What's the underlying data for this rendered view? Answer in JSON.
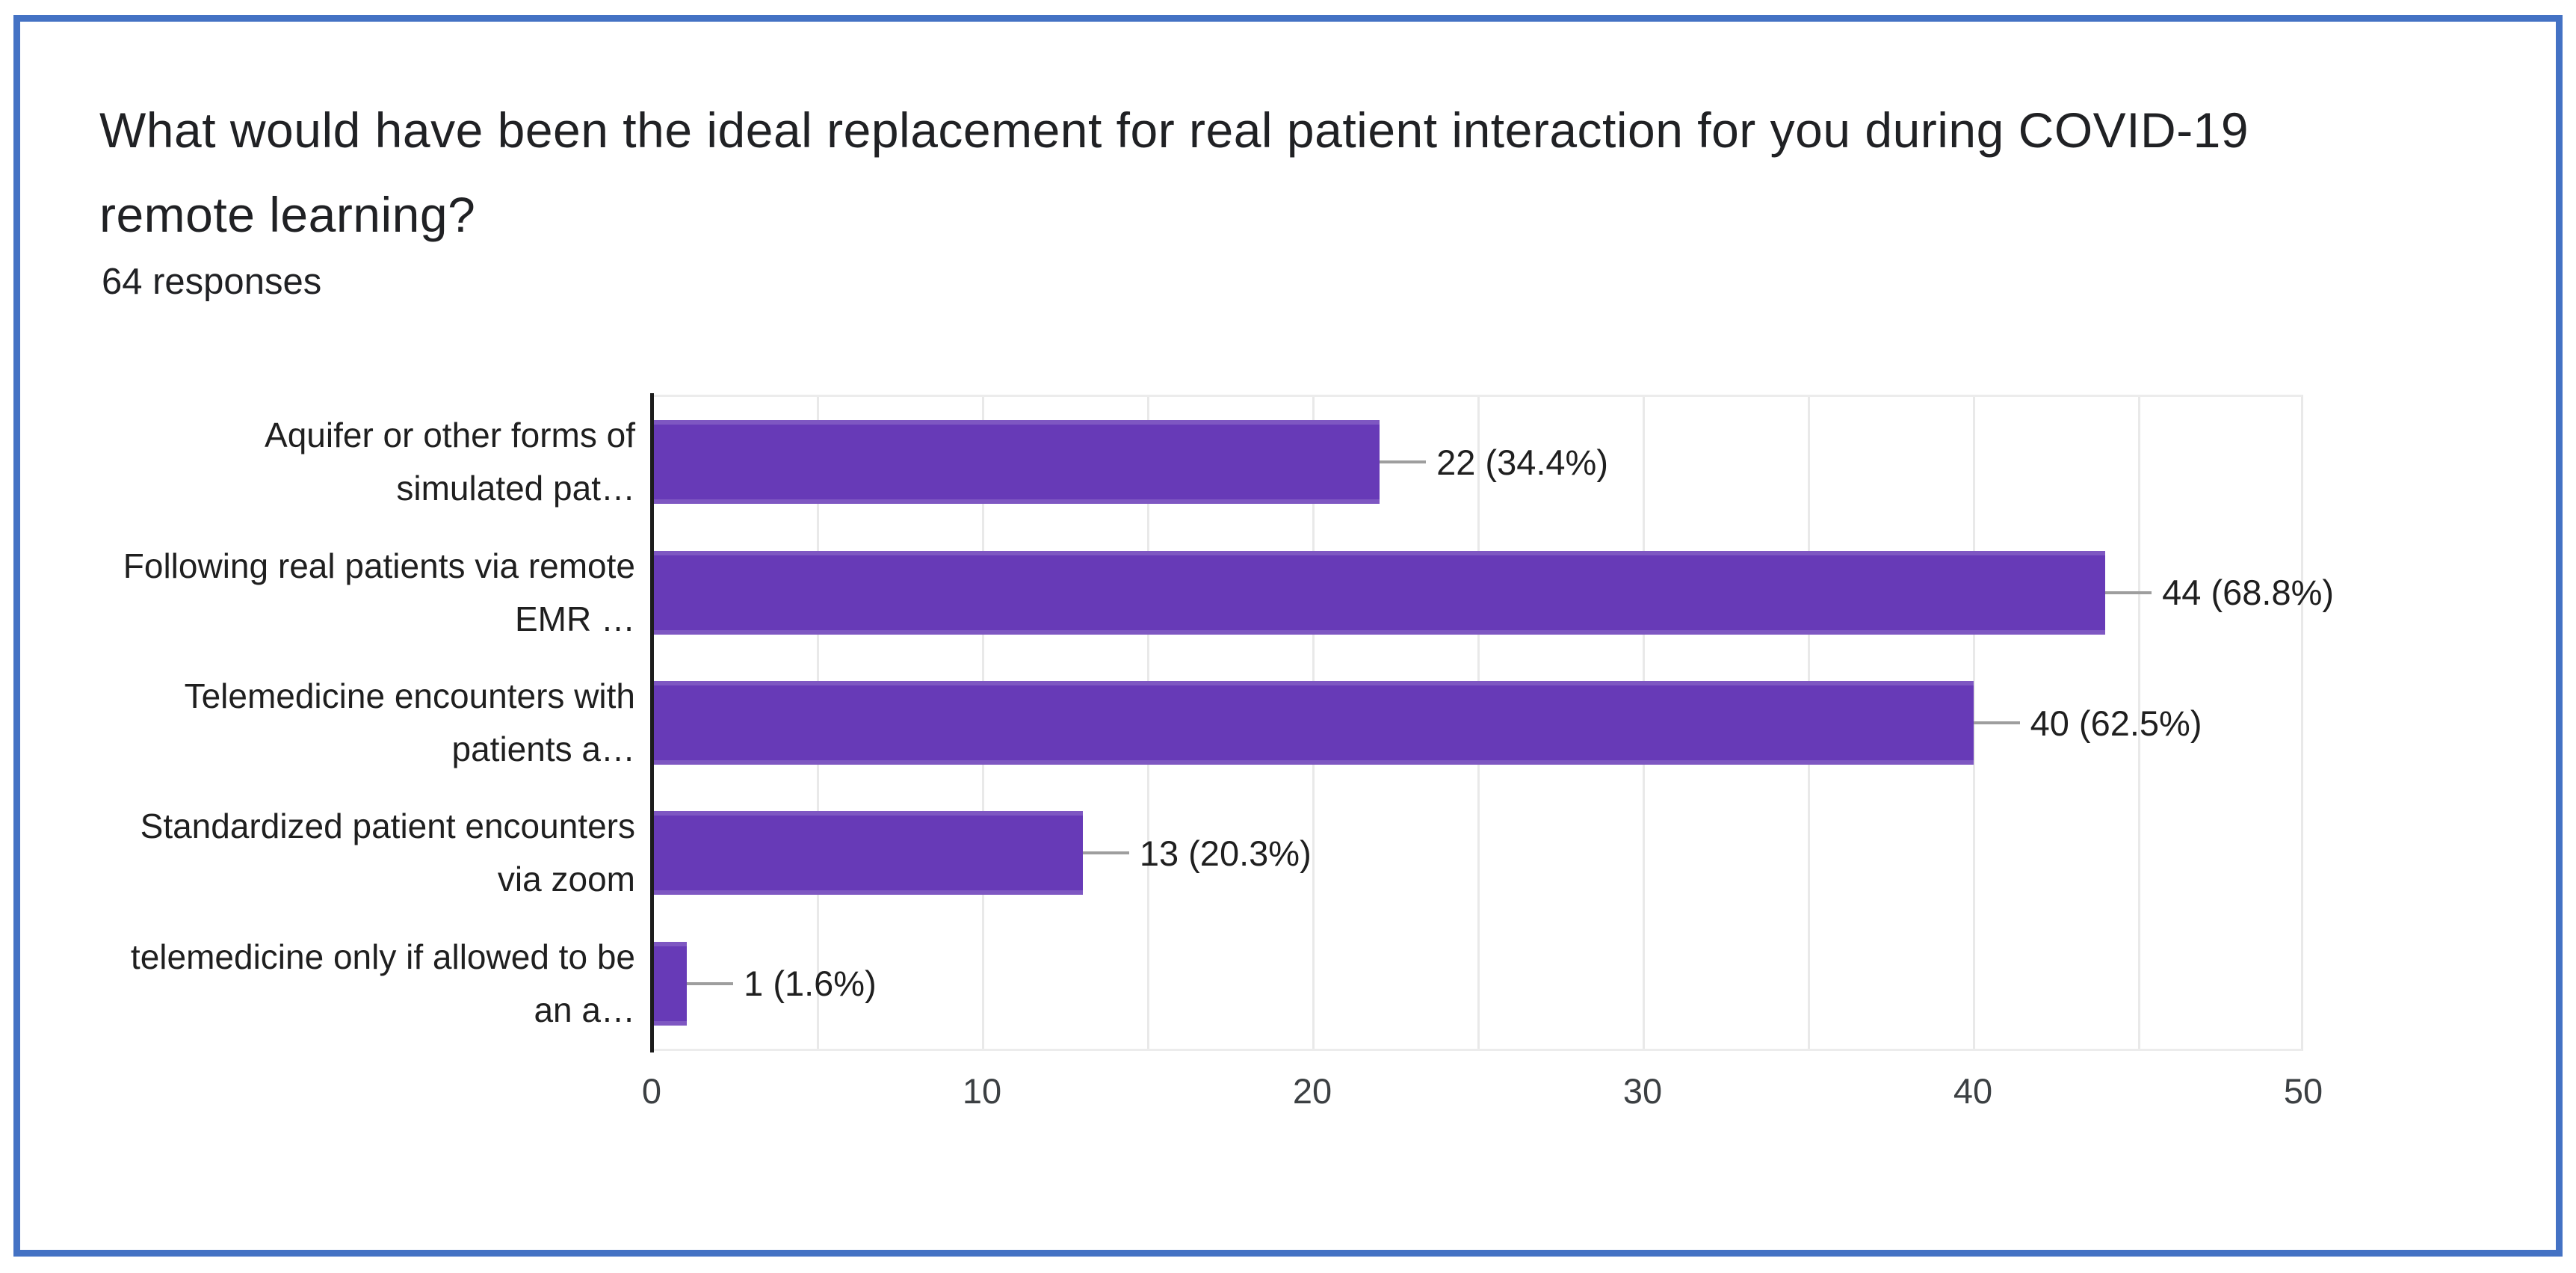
{
  "frame": {
    "border_color": "#4472C4"
  },
  "header": {
    "title_lines": [
      "What would have been the ideal replacement for real patient interaction for you during COVID-19",
      "remote learning?"
    ],
    "response_count": "64 responses"
  },
  "chart": {
    "rows": [
      {
        "label_line1": "Aquifer or other forms of",
        "label_line2": "simulated pat…",
        "value_label": "22 (34.4%)"
      },
      {
        "label_line1": "Following real patients via remote",
        "label_line2": "EMR …",
        "value_label": "44 (68.8%)"
      },
      {
        "label_line1": "Telemedicine encounters with",
        "label_line2": "patients a…",
        "value_label": "40 (62.5%)"
      },
      {
        "label_line1": "Standardized patient encounters",
        "label_line2": "via zoom",
        "value_label": "13 (20.3%)"
      },
      {
        "label_line1": "telemedicine only if allowed to be",
        "label_line2": "an a…",
        "value_label": "1 (1.6%)"
      }
    ],
    "xticks": [
      "0",
      "10",
      "20",
      "30",
      "40",
      "50"
    ]
  },
  "chart_data": {
    "type": "bar",
    "orientation": "horizontal",
    "title": "What would have been the ideal replacement for real patient interaction for you during COVID-19 remote learning?",
    "subtitle": "64 responses",
    "total_responses": 64,
    "categories": [
      "Aquifer or other forms of simulated pat…",
      "Following real patients via remote EMR …",
      "Telemedicine encounters with patients a…",
      "Standardized patient encounters via zoom",
      "telemedicine only if allowed to be an a…"
    ],
    "values": [
      22,
      44,
      40,
      13,
      1
    ],
    "percentages": [
      34.4,
      68.8,
      62.5,
      20.3,
      1.6
    ],
    "data_labels": [
      "22 (34.4%)",
      "44 (68.8%)",
      "40 (62.5%)",
      "13 (20.3%)",
      "1 (1.6%)"
    ],
    "xlabel": "",
    "ylabel": "",
    "xlim": [
      0,
      50
    ],
    "xticks": [
      0,
      10,
      20,
      30,
      40,
      50
    ],
    "gridline_interval": 5,
    "grid": true,
    "legend": "none",
    "bar_color": "#673AB7",
    "axis_line_color": "#1c1c1c",
    "gridline_color": "#e9e9e9"
  }
}
